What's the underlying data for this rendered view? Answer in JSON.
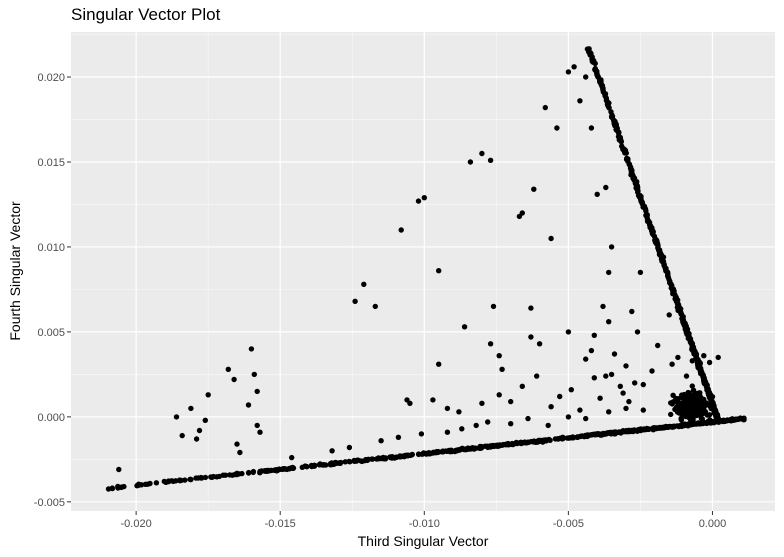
{
  "chart_data": {
    "type": "scatter",
    "title": "Singular Vector Plot",
    "xlabel": "Third Singular Vector",
    "ylabel": "Fourth Singular Vector",
    "xlim": [
      -0.02226,
      0.00217
    ],
    "ylim": [
      -0.00554,
      0.02265
    ],
    "x_ticks": [
      -0.02,
      -0.015,
      -0.01,
      -0.005,
      0.0
    ],
    "x_tick_labels": [
      "-0.020",
      "-0.015",
      "-0.010",
      "-0.005",
      "0.000"
    ],
    "y_ticks": [
      -0.005,
      0.0,
      0.005,
      0.01,
      0.015,
      0.02
    ],
    "y_tick_labels": [
      "-0.005",
      "0.000",
      "0.005",
      "0.010",
      "0.015",
      "0.020"
    ],
    "grid": true,
    "colors": {
      "panel": "#ebebeb",
      "grid_major": "#ffffff",
      "point": "#000000"
    },
    "outliers": [
      [
        -0.0206,
        -0.0031
      ],
      [
        -0.0186,
        0.0
      ],
      [
        -0.0184,
        -0.0011
      ],
      [
        -0.0181,
        0.0005
      ],
      [
        -0.0179,
        -0.0013
      ],
      [
        -0.0178,
        -0.0008
      ],
      [
        -0.0176,
        -0.0002
      ],
      [
        -0.0175,
        0.0013
      ],
      [
        -0.0168,
        0.0028
      ],
      [
        -0.0166,
        0.0022
      ],
      [
        -0.0161,
        0.0007
      ],
      [
        -0.016,
        0.004
      ],
      [
        -0.0159,
        0.0025
      ],
      [
        -0.0158,
        0.0015
      ],
      [
        -0.0158,
        -0.0005
      ],
      [
        -0.0157,
        -0.0009
      ],
      [
        -0.0164,
        -0.0021
      ],
      [
        -0.0124,
        0.0068
      ],
      [
        -0.0121,
        0.0078
      ],
      [
        -0.0117,
        0.0065
      ],
      [
        -0.0108,
        0.011
      ],
      [
        -0.0102,
        0.0127
      ],
      [
        -0.01,
        0.0129
      ],
      [
        -0.0106,
        0.001
      ],
      [
        -0.0105,
        0.0008
      ],
      [
        -0.0095,
        0.0086
      ],
      [
        -0.0095,
        0.0031
      ],
      [
        -0.0097,
        0.001
      ],
      [
        -0.0086,
        0.0053
      ],
      [
        -0.0084,
        0.015
      ],
      [
        -0.008,
        0.0155
      ],
      [
        -0.0077,
        0.0151
      ],
      [
        -0.0077,
        0.0043
      ],
      [
        -0.0076,
        0.0065
      ],
      [
        -0.0074,
        0.0036
      ],
      [
        -0.0073,
        0.0028
      ],
      [
        -0.0067,
        0.0118
      ],
      [
        -0.0066,
        0.012
      ],
      [
        -0.0063,
        0.0064
      ],
      [
        -0.0063,
        0.0047
      ],
      [
        -0.0062,
        0.0134
      ],
      [
        -0.006,
        0.0043
      ],
      [
        -0.0056,
        0.0105
      ],
      [
        -0.0056,
        0.0006
      ],
      [
        -0.0054,
        0.017
      ],
      [
        -0.0058,
        0.0182
      ],
      [
        -0.005,
        0.005
      ],
      [
        -0.005,
        0.0203
      ],
      [
        -0.0048,
        0.0206
      ],
      [
        -0.0046,
        0.0186
      ],
      [
        -0.0044,
        0.02
      ],
      [
        -0.0042,
        0.017
      ],
      [
        -0.0044,
        0.0034
      ],
      [
        -0.0041,
        0.0048
      ],
      [
        -0.0038,
        0.0065
      ],
      [
        -0.0036,
        0.0085
      ],
      [
        -0.0035,
        0.01
      ],
      [
        -0.0037,
        0.0024
      ],
      [
        -0.0037,
        0.0135
      ],
      [
        -0.004,
        0.0131
      ],
      [
        -0.0036,
        0.0056
      ],
      [
        -0.0041,
        0.0023
      ],
      [
        -0.0042,
        0.0039
      ],
      [
        -0.0025,
        0.0085
      ],
      [
        -0.002,
        0.0104
      ],
      [
        -0.0017,
        0.0094
      ],
      [
        -0.0015,
        0.006
      ],
      [
        -0.0012,
        0.0035
      ],
      [
        -0.0034,
        0.0037
      ],
      [
        -0.003,
        0.003
      ],
      [
        -0.0032,
        0.0018
      ],
      [
        -0.0028,
        0.0062
      ],
      [
        -0.0026,
        0.005
      ],
      [
        -0.0024,
        0.0019
      ],
      [
        -0.003,
        0.0005
      ],
      [
        -0.0027,
        0.002
      ],
      [
        -0.0092,
        0.0005
      ],
      [
        -0.0088,
        0.0003
      ],
      [
        -0.008,
        0.0008
      ],
      [
        -0.0074,
        0.0013
      ],
      [
        -0.007,
        0.0009
      ],
      [
        -0.0066,
        0.0018
      ],
      [
        -0.0061,
        0.0024
      ],
      [
        -0.0053,
        0.0012
      ],
      [
        -0.0049,
        0.0016
      ],
      [
        -0.0046,
        0.0004
      ],
      [
        -0.0039,
        0.0011
      ],
      [
        -0.0035,
        0.0025
      ],
      [
        -0.0031,
        0.0014
      ],
      [
        -0.0029,
        0.0009
      ],
      [
        -0.0021,
        0.0027
      ],
      [
        -0.0019,
        0.0042
      ],
      [
        -0.0014,
        0.0031
      ],
      [
        -0.0009,
        0.0024
      ],
      [
        -0.0007,
        0.0033
      ],
      [
        -0.0005,
        0.0029
      ],
      [
        -0.0003,
        0.0036
      ],
      [
        -0.0001,
        0.0032
      ],
      [
        0.0002,
        0.0035
      ],
      [
        -0.0165,
        -0.0016
      ],
      [
        -0.0146,
        -0.0024
      ],
      [
        -0.0132,
        -0.002
      ],
      [
        -0.0126,
        -0.0018
      ],
      [
        -0.0115,
        -0.0014
      ],
      [
        -0.0109,
        -0.0012
      ],
      [
        -0.0101,
        -0.001
      ],
      [
        -0.0092,
        -0.0009
      ],
      [
        -0.0087,
        -0.0007
      ],
      [
        -0.0082,
        -0.0005
      ],
      [
        -0.0078,
        -0.0003
      ],
      [
        -0.007,
        -0.0004
      ],
      [
        -0.0064,
        -0.0001
      ],
      [
        -0.0057,
        -0.0005
      ],
      [
        -0.005,
        0.0
      ],
      [
        -0.0044,
        -0.0001
      ],
      [
        -0.0036,
        0.0003
      ],
      [
        -0.0024,
        0.0004
      ]
    ]
  }
}
